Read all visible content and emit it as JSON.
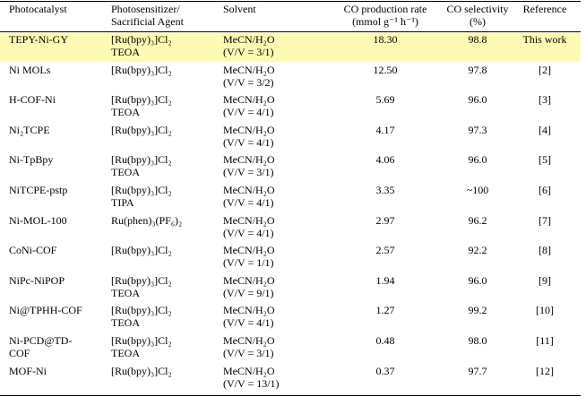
{
  "headers": {
    "photocatalyst": "Photocatalyst",
    "photosensitizer_1": "Photosensitizer/",
    "photosensitizer_2": "Sacrificial Agent",
    "solvent": "Solvent",
    "co_rate_1": "CO production rate",
    "co_rate_2": "(mmol g⁻¹ h⁻¹)",
    "co_sel_1": "CO selectivity",
    "co_sel_2": "(%)",
    "reference": "Reference"
  },
  "rows": [
    {
      "catalyst": [
        "TEPY-Ni-GY"
      ],
      "ps": [
        "[Ru(bpy)₃]Cl₂",
        "TEOA"
      ],
      "solvent": [
        "MeCN/H₂O",
        "(V/V = 3/1)"
      ],
      "rate": "18.30",
      "selectivity": "98.8",
      "reference": "This work"
    },
    {
      "catalyst": [
        "Ni MOLs"
      ],
      "ps": [
        "[Ru(bpy)₃]Cl₂"
      ],
      "solvent": [
        "MeCN/H₂O",
        "(V/V = 3/2)"
      ],
      "rate": "12.50",
      "selectivity": "97.8",
      "reference": "[2]"
    },
    {
      "catalyst": [
        "H-COF-Ni"
      ],
      "ps": [
        "[Ru(bpy)₃]Cl₂",
        "TEOA"
      ],
      "solvent": [
        "MeCN/H₂O",
        "(V/V = 4/1)"
      ],
      "rate": "5.69",
      "selectivity": "96.0",
      "reference": "[3]"
    },
    {
      "catalyst": [
        "Ni₂TCPE"
      ],
      "ps": [
        "[Ru(bpy)₃]Cl₂"
      ],
      "solvent": [
        "MeCN/H₂O",
        "(V/V = 4/1)"
      ],
      "rate": "4.17",
      "selectivity": "97.3",
      "reference": "[4]"
    },
    {
      "catalyst": [
        "Ni-TpBpy"
      ],
      "ps": [
        "[Ru(bpy)₃]Cl₂",
        "TEOA"
      ],
      "solvent": [
        "MeCN/H₂O",
        "(V/V = 3/1)"
      ],
      "rate": "4.06",
      "selectivity": "96.0",
      "reference": "[5]"
    },
    {
      "catalyst": [
        "NiTCPE-pstp"
      ],
      "ps": [
        "[Ru(bpy)₃]Cl₂",
        "TIPA"
      ],
      "solvent": [
        "MeCN/H₂O",
        "(V/V = 4/1)"
      ],
      "rate": "3.35",
      "selectivity": "~100",
      "reference": "[6]"
    },
    {
      "catalyst": [
        "Ni-MOL-100"
      ],
      "ps": [
        "Ru(phen)₃(PF₆)₂"
      ],
      "solvent": [
        "MeCN/H₂O",
        "(V/V = 4/1)"
      ],
      "rate": "2.97",
      "selectivity": "96.2",
      "reference": "[7]"
    },
    {
      "catalyst": [
        "CoNi-COF"
      ],
      "ps": [
        "[Ru(bpy)₃]Cl₂"
      ],
      "solvent": [
        "MeCN/H₂O",
        "(V/V = 1/1)"
      ],
      "rate": "2.57",
      "selectivity": "92.2",
      "reference": "[8]"
    },
    {
      "catalyst": [
        "NiPc-NiPOP"
      ],
      "ps": [
        "[Ru(bpy)₃]Cl₂",
        "TEOA"
      ],
      "solvent": [
        "MeCN/H₂O",
        "(V/V = 9/1)"
      ],
      "rate": "1.94",
      "selectivity": "96.0",
      "reference": "[9]"
    },
    {
      "catalyst": [
        "Ni@TPHH-COF"
      ],
      "ps": [
        "[Ru(bpy)₃]Cl₂",
        "TEOA"
      ],
      "solvent": [
        "MeCN/H₂O",
        "(V/V = 4/1)"
      ],
      "rate": "1.27",
      "selectivity": "99.2",
      "reference": "[10]"
    },
    {
      "catalyst": [
        "Ni-PCD@TD-",
        "COF"
      ],
      "ps": [
        "[Ru(bpy)₃]Cl₂",
        "TEOA"
      ],
      "solvent": [
        "MeCN/H₂O",
        "(V/V = 3/1)"
      ],
      "rate": "0.48",
      "selectivity": "98.0",
      "reference": "[11]"
    },
    {
      "catalyst": [
        "MOF-Ni"
      ],
      "ps": [
        "[Ru(bpy)₃]Cl₂"
      ],
      "solvent": [
        "MeCN/H₂O",
        "(V/V = 13/1)"
      ],
      "rate": "0.37",
      "selectivity": "97.7",
      "reference": "[12]"
    }
  ]
}
